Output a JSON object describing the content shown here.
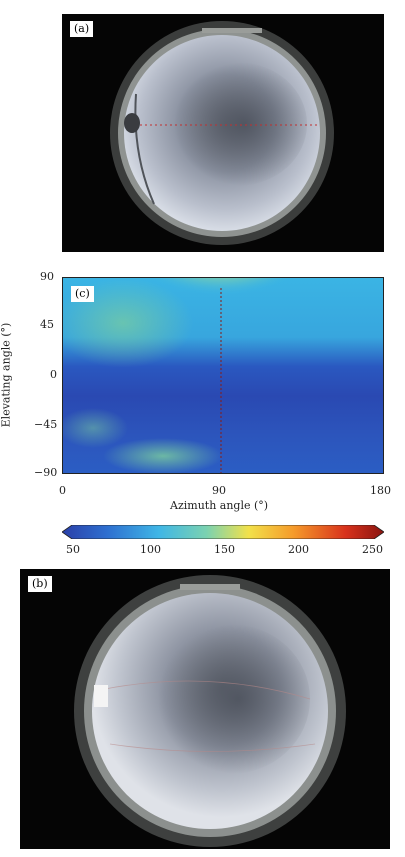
{
  "panel_a": {
    "label": "(a)"
  },
  "panel_b": {
    "label": "(b)"
  },
  "chart_data": {
    "type": "heatmap",
    "panel_label": "(c)",
    "xlabel": "Azimuth angle (°)",
    "ylabel": "Elevating angle (°)",
    "x_ticks": [
      "0",
      "90",
      "180"
    ],
    "y_ticks": [
      "90",
      "45",
      "0",
      "−45",
      "−90"
    ],
    "xlim": [
      0,
      180
    ],
    "ylim": [
      -90,
      90
    ],
    "colorbar": {
      "ticks": [
        "50",
        "100",
        "150",
        "200",
        "250"
      ],
      "range": [
        50,
        250
      ],
      "colors": [
        "#2a3fa8",
        "#2e6fd0",
        "#3fb6e6",
        "#7bd2b0",
        "#f2e14a",
        "#f59a2a",
        "#d8321c",
        "#8a1410"
      ]
    }
  }
}
